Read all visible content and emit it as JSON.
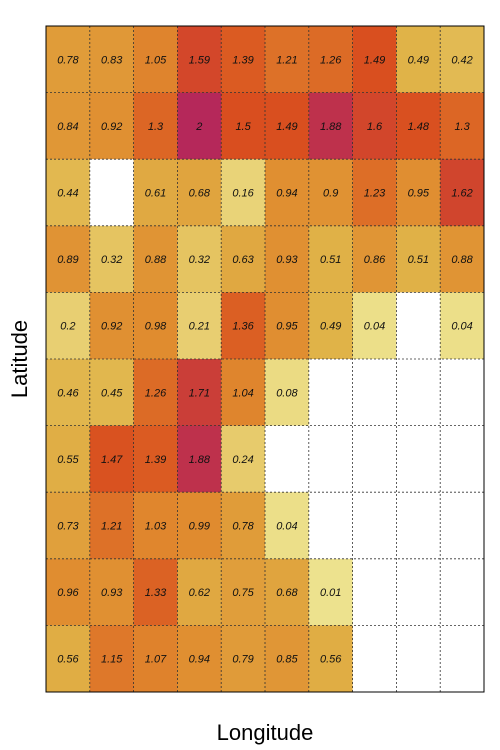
{
  "chart_data": {
    "type": "heatmap",
    "title": "",
    "xlabel": "Longitude",
    "ylabel": "Latitude",
    "grid": true,
    "legend": "none",
    "n_cols": 10,
    "n_rows": 10,
    "value_range": [
      0,
      2
    ],
    "colors": {
      "low": "#ede38f",
      "mid_low": "#e0b247",
      "mid": "#e08a2e",
      "high": "#d94e1f",
      "max": "#b5285a",
      "missing": "#ffffff",
      "grid": "#333333",
      "frame": "#000000"
    },
    "rows": [
      [
        0.78,
        0.83,
        1.05,
        1.59,
        1.39,
        1.21,
        1.26,
        1.49,
        0.49,
        0.42
      ],
      [
        0.84,
        0.92,
        1.3,
        2,
        1.5,
        1.49,
        1.88,
        1.6,
        1.48,
        1.3
      ],
      [
        0.44,
        null,
        0.61,
        0.68,
        0.16,
        0.94,
        0.9,
        1.23,
        0.95,
        1.62
      ],
      [
        0.89,
        0.32,
        0.88,
        0.32,
        0.63,
        0.93,
        0.51,
        0.86,
        0.51,
        0.88
      ],
      [
        0.2,
        0.92,
        0.98,
        0.21,
        1.36,
        0.95,
        0.49,
        0.04,
        null,
        0.04
      ],
      [
        0.46,
        0.45,
        1.26,
        1.71,
        1.04,
        0.08,
        null,
        null,
        null,
        null
      ],
      [
        0.55,
        1.47,
        1.39,
        1.88,
        0.24,
        null,
        null,
        null,
        null,
        null
      ],
      [
        0.73,
        1.21,
        1.03,
        0.99,
        0.78,
        0.04,
        null,
        null,
        null,
        null
      ],
      [
        0.96,
        0.93,
        1.33,
        0.62,
        0.75,
        0.68,
        0.01,
        null,
        null,
        null
      ],
      [
        0.56,
        1.15,
        1.07,
        0.94,
        0.79,
        0.85,
        0.56,
        null,
        null,
        null
      ]
    ]
  }
}
